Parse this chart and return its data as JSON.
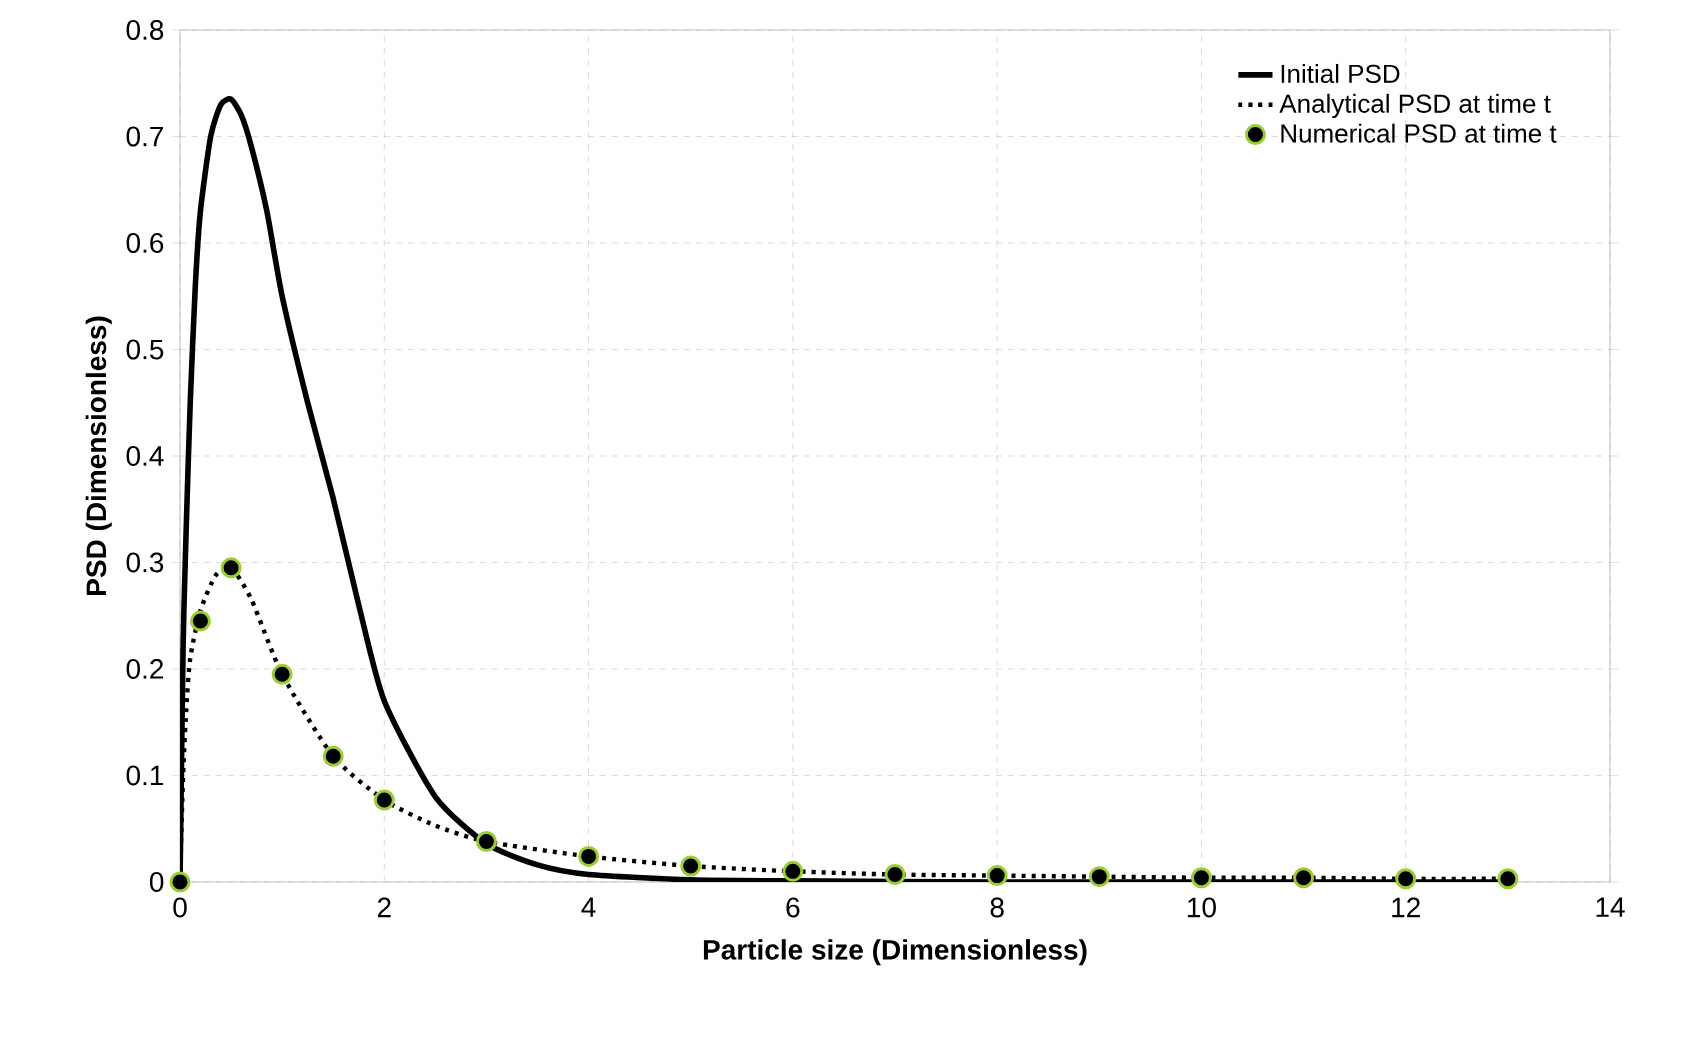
{
  "chart_data": {
    "type": "line",
    "xlabel": "Particle size (Dimensionless)",
    "ylabel": "PSD (Dimensionless)",
    "xlim": [
      0,
      14
    ],
    "ylim": [
      0,
      0.8
    ],
    "xticks": [
      0,
      2,
      4,
      6,
      8,
      10,
      12,
      14
    ],
    "yticks": [
      0,
      0.1,
      0.2,
      0.3,
      0.4,
      0.5,
      0.6,
      0.7,
      0.8
    ],
    "grid": true,
    "legend": "top right",
    "series": [
      {
        "name": "Initial PSD",
        "line_style": "solid",
        "color": "#000000",
        "x": [
          0,
          0.03,
          0.06,
          0.1,
          0.15,
          0.2,
          0.3,
          0.4,
          0.5,
          0.6,
          0.7,
          0.85,
          1.0,
          1.25,
          1.5,
          1.75,
          2.0,
          2.5,
          3.0,
          3.5,
          4.0,
          5.0,
          6.0,
          8.0,
          10.0,
          13.0
        ],
        "values": [
          0,
          0.22,
          0.33,
          0.45,
          0.56,
          0.63,
          0.7,
          0.73,
          0.735,
          0.72,
          0.69,
          0.63,
          0.55,
          0.45,
          0.36,
          0.26,
          0.17,
          0.08,
          0.036,
          0.016,
          0.007,
          0.002,
          0.001,
          0,
          0,
          0
        ]
      },
      {
        "name": "Analytical PSD at time t",
        "line_style": "dotted",
        "color": "#000000",
        "x": [
          0,
          0.03,
          0.06,
          0.1,
          0.2,
          0.35,
          0.5,
          0.7,
          1.0,
          1.5,
          2.0,
          2.5,
          3.0,
          4.0,
          5.0,
          6.0,
          7.0,
          8.0,
          9.0,
          10.0,
          11.0,
          12.0,
          13.0
        ],
        "values": [
          0,
          0.1,
          0.16,
          0.21,
          0.255,
          0.288,
          0.295,
          0.265,
          0.195,
          0.118,
          0.077,
          0.053,
          0.038,
          0.024,
          0.015,
          0.01,
          0.007,
          0.006,
          0.005,
          0.004,
          0.004,
          0.003,
          0.003
        ]
      },
      {
        "name": "Numerical PSD at time t",
        "type": "scatter",
        "marker": "circle",
        "color": "#000000",
        "x": [
          0,
          0.2,
          0.5,
          1,
          1.5,
          2,
          3,
          4,
          5,
          6,
          7,
          8,
          9,
          10,
          11,
          12,
          13
        ],
        "values": [
          0,
          0.245,
          0.295,
          0.195,
          0.118,
          0.077,
          0.038,
          0.024,
          0.015,
          0.01,
          0.007,
          0.006,
          0.005,
          0.004,
          0.004,
          0.003,
          0.003
        ]
      }
    ]
  }
}
